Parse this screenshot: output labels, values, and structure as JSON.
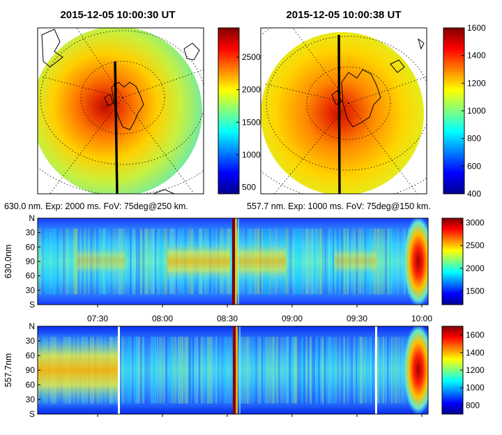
{
  "chart_data": [
    {
      "type": "heatmap",
      "title": "2015-12-05 10:00:30 UT",
      "caption": "630.0 nm. Exp: 2000 ms. FoV: 75deg@250 km.",
      "colorbar_ticks": [
        500,
        1000,
        1500,
        2000,
        2500
      ],
      "colorbar_range": [
        400,
        2950
      ],
      "colormap": "jet"
    },
    {
      "type": "heatmap",
      "title": "2015-12-05 10:00:38 UT",
      "caption": "557.7 nm. Exp: 1000 ms. FoV: 75deg@150 km.",
      "colorbar_ticks": [
        400,
        600,
        800,
        1000,
        1200,
        1400,
        1600
      ],
      "colorbar_range": [
        400,
        1600
      ],
      "colormap": "jet"
    },
    {
      "type": "heatmap",
      "ylabel": "630.0nm",
      "y_ticks": [
        "N",
        "30",
        "60",
        "90",
        "60",
        "30",
        "S"
      ],
      "x_ticks": [
        "07:30",
        "08:00",
        "08:30",
        "09:00",
        "09:30",
        "10:00"
      ],
      "colorbar_ticks": [
        1500,
        2000,
        2500,
        3000
      ],
      "colorbar_range": [
        1200,
        3100
      ],
      "colormap": "jet"
    },
    {
      "type": "heatmap",
      "ylabel": "557.7nm",
      "y_ticks": [
        "N",
        "30",
        "60",
        "90",
        "60",
        "30",
        "S"
      ],
      "colorbar_ticks": [
        800,
        1000,
        1200,
        1400,
        1600
      ],
      "colorbar_range": [
        700,
        1700
      ],
      "colormap": "jet"
    }
  ]
}
